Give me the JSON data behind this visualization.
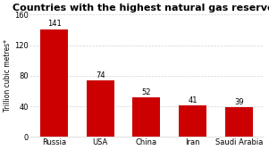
{
  "title": "Countries with the highest natural gas reserves",
  "categories": [
    "Russia",
    "USA",
    "China",
    "Iran",
    "Saudi Arabia"
  ],
  "values": [
    141,
    74,
    52,
    41,
    39
  ],
  "bar_color": "#cc0000",
  "ylabel": "Trillion cubic metres*",
  "ylim": [
    0,
    160
  ],
  "yticks": [
    0,
    40,
    80,
    120,
    160
  ],
  "title_fontsize": 8.0,
  "label_fontsize": 6.0,
  "tick_fontsize": 6.0,
  "ylabel_fontsize": 5.5,
  "value_fontsize": 6.0,
  "background_color": "#ffffff"
}
